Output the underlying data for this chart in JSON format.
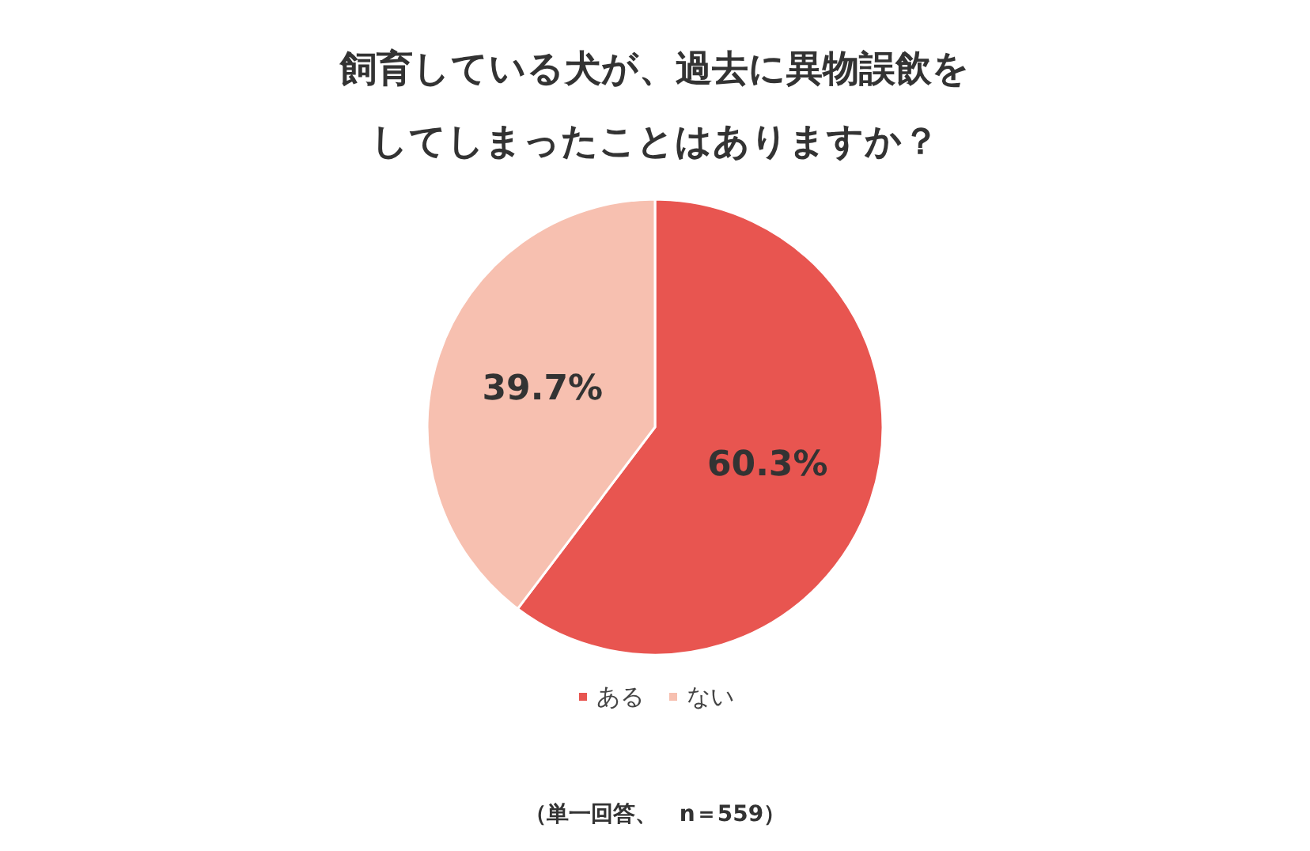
{
  "chart_data": {
    "type": "pie",
    "title": "飼育している犬が、過去に異物誤飲をしてしまったことはありますか？",
    "categories": [
      "ある",
      "ない"
    ],
    "values": [
      60.3,
      39.7
    ],
    "colors": [
      "#e85550",
      "#f7c0b0"
    ],
    "value_labels": [
      "60.3%",
      "39.7%"
    ],
    "legend": "bottom",
    "annotations": [
      "（単一回答、　n＝559）"
    ]
  }
}
